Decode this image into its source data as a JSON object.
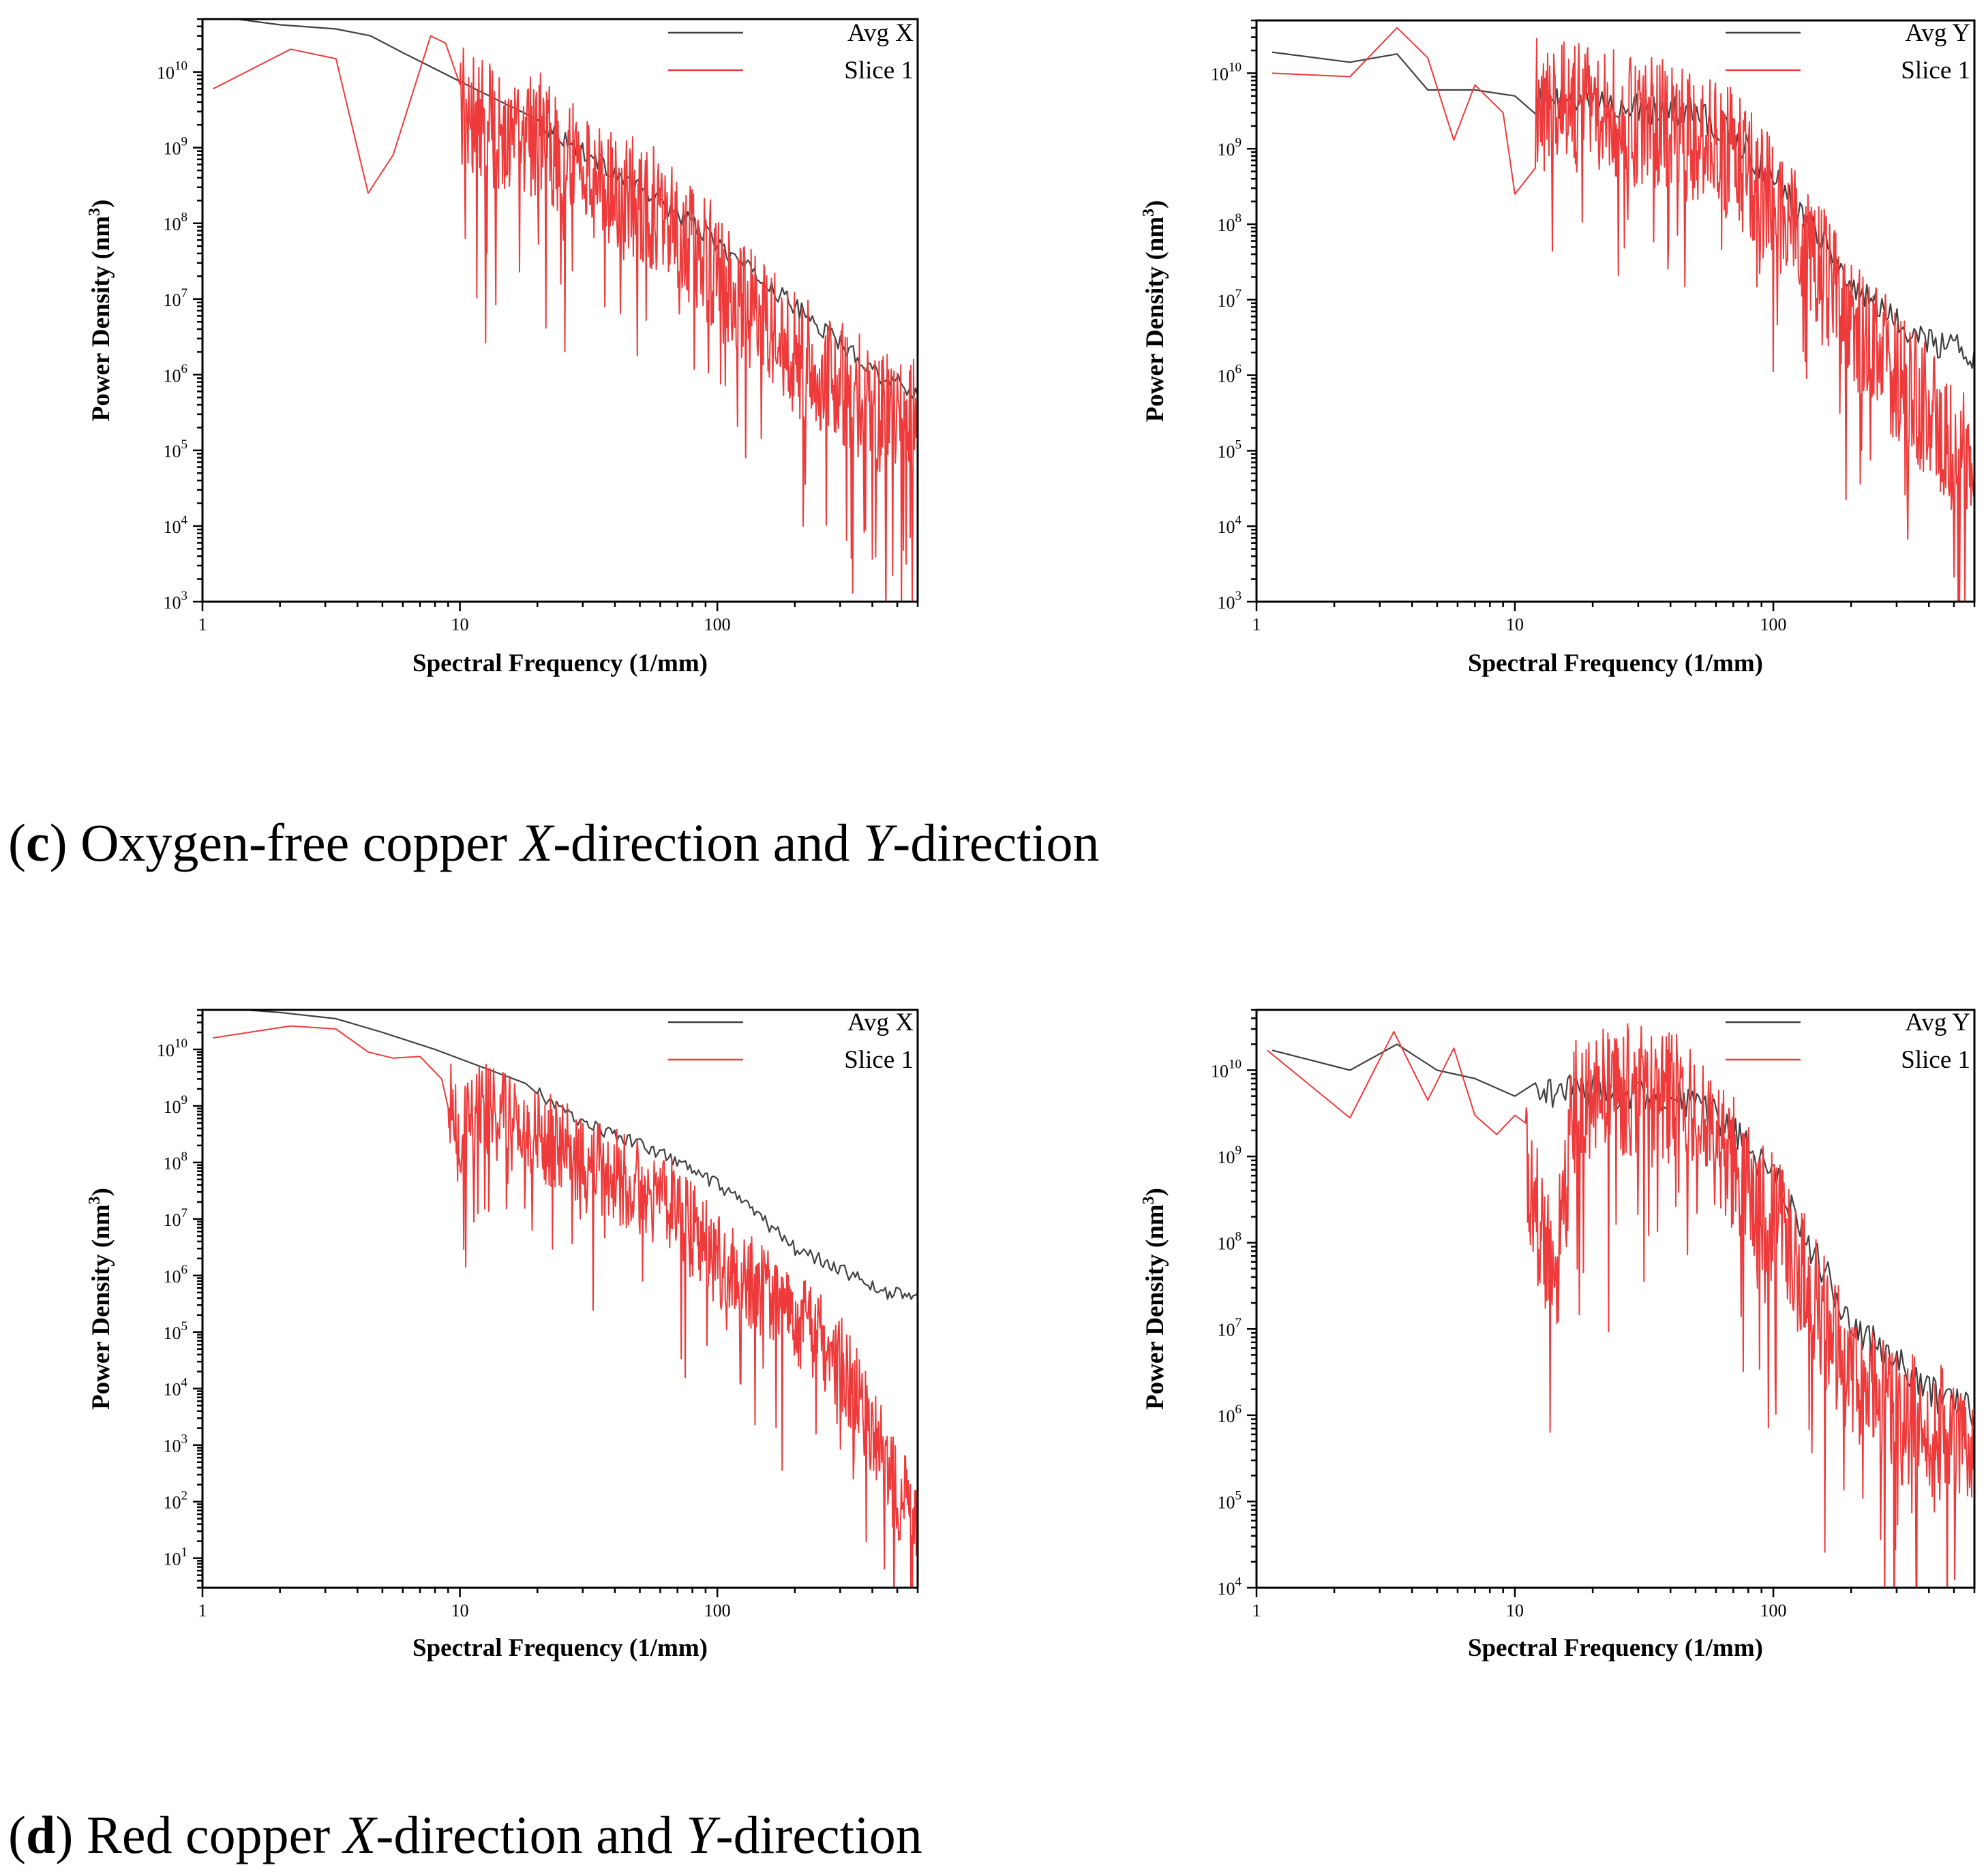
{
  "captions": [
    {
      "letter": "c",
      "pre": " Oxygen-free copper ",
      "x": "X",
      "mid": "-direction and ",
      "y": "Y",
      "post": "-direction"
    },
    {
      "letter": "d",
      "pre": " Red copper ",
      "x": "X",
      "mid": "-direction and ",
      "y": "Y",
      "post": "-direction"
    }
  ],
  "colors": {
    "avg": "#404040",
    "slice": "#ee3a3a",
    "axis": "#000000"
  },
  "chart_data": [
    {
      "type": "line",
      "xscale": "log",
      "yscale": "log",
      "xlim": [
        1,
        600
      ],
      "ylim": [
        1000,
        50000000000
      ],
      "xticks": [
        {
          "v": 1,
          "label": "1"
        },
        {
          "v": 10,
          "label": "10"
        },
        {
          "v": 100,
          "label": "100"
        }
      ],
      "ytick_exponents": [
        3,
        4,
        5,
        6,
        7,
        8,
        9,
        10
      ],
      "xlabel": "Spectral Frequency (1/mm)",
      "ylabel": "Power Density (nm",
      "ylabel_sup": "3",
      "ylabel_close": ")",
      "series": [
        {
          "name": "Avg X",
          "color": "#404040",
          "anchors": [
            [
              1.1,
              55000000000.0
            ],
            [
              2,
              42000000000.0
            ],
            [
              3.3,
              37000000000.0
            ],
            [
              4.5,
              30000000000.0
            ],
            [
              6,
              18000000000.0
            ],
            [
              8,
              11000000000.0
            ],
            [
              10,
              7500000000.0
            ],
            [
              15,
              3800000000.0
            ],
            [
              20,
              2200000000.0
            ],
            [
              30,
              900000000.0
            ],
            [
              50,
              280000000.0
            ],
            [
              80,
              100000000.0
            ],
            [
              120,
              32000000.0
            ],
            [
              200,
              8000000.0
            ],
            [
              300,
              2600000.0
            ],
            [
              450,
              900000.0
            ],
            [
              600,
              580000.0
            ]
          ],
          "noise": {
            "from": 20,
            "amp": 0.12,
            "ppd": 120
          }
        },
        {
          "name": "Slice 1",
          "color": "#ee3a3a",
          "anchors": [
            [
              1.1,
              6000000000.0
            ],
            [
              2.2,
              20000000000.0
            ],
            [
              3.3,
              15000000000.0
            ],
            [
              4.4,
              250000000.0
            ],
            [
              5.5,
              800000000.0
            ],
            [
              7.7,
              30000000000.0
            ],
            [
              8.8,
              24000000000.0
            ],
            [
              10,
              4000000000.0
            ],
            [
              12,
              2000000000.0
            ],
            [
              15,
              2000000000.0
            ],
            [
              20,
              1500000000.0
            ],
            [
              30,
              500000000.0
            ],
            [
              50,
              200000000.0
            ],
            [
              80,
              60000000.0
            ],
            [
              120,
              10000000.0
            ],
            [
              200,
              2000000.0
            ],
            [
              300,
              800000.0
            ],
            [
              450,
              300000.0
            ],
            [
              600,
              250000.0
            ]
          ],
          "noise": {
            "from": 10,
            "amp": 0.85,
            "ppd": 380
          }
        }
      ]
    },
    {
      "type": "line",
      "xscale": "log",
      "yscale": "log",
      "xlim": [
        1,
        600
      ],
      "ylim": [
        1000,
        50000000000
      ],
      "xticks": [
        {
          "v": 1,
          "label": "1"
        },
        {
          "v": 10,
          "label": "10"
        },
        {
          "v": 100,
          "label": "100"
        }
      ],
      "ytick_exponents": [
        3,
        4,
        5,
        6,
        7,
        8,
        9,
        10
      ],
      "xlabel": "Spectral Frequency (1/mm)",
      "ylabel": "Power Density (nm",
      "ylabel_sup": "3",
      "ylabel_close": ")",
      "series": [
        {
          "name": "Avg Y",
          "color": "#404040",
          "anchors": [
            [
              1.15,
              19000000000.0
            ],
            [
              2.3,
              14000000000.0
            ],
            [
              3.5,
              18000000000.0
            ],
            [
              4.6,
              6000000000.0
            ],
            [
              7,
              6000000000.0
            ],
            [
              10,
              5000000000.0
            ],
            [
              15,
              4000000000.0
            ],
            [
              20,
              4000000000.0
            ],
            [
              30,
              3500000000.0
            ],
            [
              50,
              3000000000.0
            ],
            [
              70,
              1500000000.0
            ],
            [
              100,
              400000000.0
            ],
            [
              150,
              80000000.0
            ],
            [
              200,
              15000000.0
            ],
            [
              300,
              5000000.0
            ],
            [
              450,
              2500000.0
            ],
            [
              600,
              1900000.0
            ]
          ],
          "noise": {
            "from": 12,
            "amp": 0.2,
            "ppd": 120
          }
        },
        {
          "name": "Slice 1",
          "color": "#ee3a3a",
          "anchors": [
            [
              1.15,
              10000000000.0
            ],
            [
              2.3,
              9000000000.0
            ],
            [
              3.5,
              40000000000.0
            ],
            [
              4.6,
              16000000000.0
            ],
            [
              5.8,
              1300000000.0
            ],
            [
              7,
              7000000000.0
            ],
            [
              9,
              3000000000.0
            ],
            [
              10,
              250000000.0
            ],
            [
              12,
              4000000000.0
            ],
            [
              20,
              3000000000.0
            ],
            [
              40,
              2000000000.0
            ],
            [
              70,
              800000000.0
            ],
            [
              100,
              200000000.0
            ],
            [
              150,
              30000000.0
            ],
            [
              200,
              6000000.0
            ],
            [
              300,
              1000000.0
            ],
            [
              450,
              200000.0
            ],
            [
              600,
              45000.0
            ]
          ],
          "noise": {
            "from": 12,
            "amp": 0.9,
            "ppd": 380
          }
        }
      ]
    },
    {
      "type": "line",
      "xscale": "log",
      "yscale": "log",
      "xlim": [
        1,
        600
      ],
      "ylim": [
        3,
        50000000000
      ],
      "xticks": [
        {
          "v": 1,
          "label": "1"
        },
        {
          "v": 10,
          "label": "10"
        },
        {
          "v": 100,
          "label": "100"
        }
      ],
      "ytick_exponents": [
        1,
        2,
        3,
        4,
        5,
        6,
        7,
        8,
        9,
        10
      ],
      "xlabel": "Spectral Frequency (1/mm)",
      "ylabel": "Power Density (nm",
      "ylabel_sup": "3",
      "ylabel_close": ")",
      "series": [
        {
          "name": "Avg X",
          "color": "#404040",
          "anchors": [
            [
              1.1,
              55000000000.0
            ],
            [
              2,
              45000000000.0
            ],
            [
              3.3,
              35000000000.0
            ],
            [
              5,
              20000000000.0
            ],
            [
              8,
              10000000000.0
            ],
            [
              12,
              5000000000.0
            ],
            [
              18,
              2500000000.0
            ],
            [
              25,
              800000000.0
            ],
            [
              40,
              300000000.0
            ],
            [
              60,
              150000000.0
            ],
            [
              100,
              40000000.0
            ],
            [
              150,
              10000000.0
            ],
            [
              200,
              3000000.0
            ],
            [
              300,
              1300000.0
            ],
            [
              450,
              500000.0
            ],
            [
              600,
              450000.0
            ]
          ],
          "noise": {
            "from": 20,
            "amp": 0.12,
            "ppd": 120
          }
        },
        {
          "name": "Slice 1",
          "color": "#ee3a3a",
          "anchors": [
            [
              1.1,
              16000000000.0
            ],
            [
              2.2,
              26000000000.0
            ],
            [
              3.3,
              23000000000.0
            ],
            [
              4.4,
              9000000000.0
            ],
            [
              5.5,
              7000000000.0
            ],
            [
              7,
              7500000000.0
            ],
            [
              8.5,
              3000000000.0
            ],
            [
              10,
              300000000.0
            ],
            [
              12,
              1000000000.0
            ],
            [
              20,
              300000000.0
            ],
            [
              40,
              60000000.0
            ],
            [
              70,
              15000000.0
            ],
            [
              100,
              2000000.0
            ],
            [
              150,
              500000.0
            ],
            [
              200,
              200000.0
            ],
            [
              300,
              30000.0
            ],
            [
              400,
              2000.0
            ],
            [
              500,
              150
            ],
            [
              600,
              60
            ]
          ],
          "noise": {
            "from": 9,
            "amp": 0.85,
            "ppd": 380
          }
        }
      ]
    },
    {
      "type": "line",
      "xscale": "log",
      "yscale": "log",
      "xlim": [
        1,
        600
      ],
      "ylim": [
        10000,
        50000000000
      ],
      "xticks": [
        {
          "v": 1,
          "label": "1"
        },
        {
          "v": 10,
          "label": "10"
        },
        {
          "v": 100,
          "label": "100"
        }
      ],
      "ytick_exponents": [
        4,
        5,
        6,
        7,
        8,
        9,
        10
      ],
      "xlabel": "Spectral Frequency (1/mm)",
      "ylabel": "Power Density (nm",
      "ylabel_sup": "3",
      "ylabel_close": ")",
      "series": [
        {
          "name": "Avg Y",
          "color": "#404040",
          "anchors": [
            [
              1.15,
              17000000000.0
            ],
            [
              2.3,
              10000000000.0
            ],
            [
              3.5,
              20000000000.0
            ],
            [
              5,
              10000000000.0
            ],
            [
              7,
              8000000000.0
            ],
            [
              10,
              5000000000.0
            ],
            [
              15,
              6000000000.0
            ],
            [
              25,
              5500000000.0
            ],
            [
              40,
              5000000000.0
            ],
            [
              60,
              3000000000.0
            ],
            [
              100,
              600000000.0
            ],
            [
              150,
              60000000.0
            ],
            [
              200,
              12000000.0
            ],
            [
              300,
              4000000.0
            ],
            [
              450,
              1500000.0
            ],
            [
              600,
              1100000.0
            ]
          ],
          "noise": {
            "from": 12,
            "amp": 0.2,
            "ppd": 120
          }
        },
        {
          "name": "Slice 1",
          "color": "#ee3a3a",
          "anchors": [
            [
              1.1,
              17000000000.0
            ],
            [
              2.3,
              2800000000.0
            ],
            [
              3.4,
              28000000000.0
            ],
            [
              4.6,
              4500000000.0
            ],
            [
              5.8,
              18000000000.0
            ],
            [
              7,
              3000000000.0
            ],
            [
              8.5,
              1800000000.0
            ],
            [
              10,
              3000000000.0
            ],
            [
              12.5,
              140000000.0
            ],
            [
              14.5,
              50000000.0
            ],
            [
              17,
              4000000000.0
            ],
            [
              25,
              6000000000.0
            ],
            [
              40,
              5000000000.0
            ],
            [
              60,
              1500000000.0
            ],
            [
              100,
              200000000.0
            ],
            [
              150,
              20000000.0
            ],
            [
              200,
              3000000.0
            ],
            [
              300,
              1000000.0
            ],
            [
              450,
              600000.0
            ],
            [
              600,
              500000.0
            ]
          ],
          "noise": {
            "from": 11,
            "amp": 0.8,
            "ppd": 380
          }
        }
      ]
    }
  ]
}
